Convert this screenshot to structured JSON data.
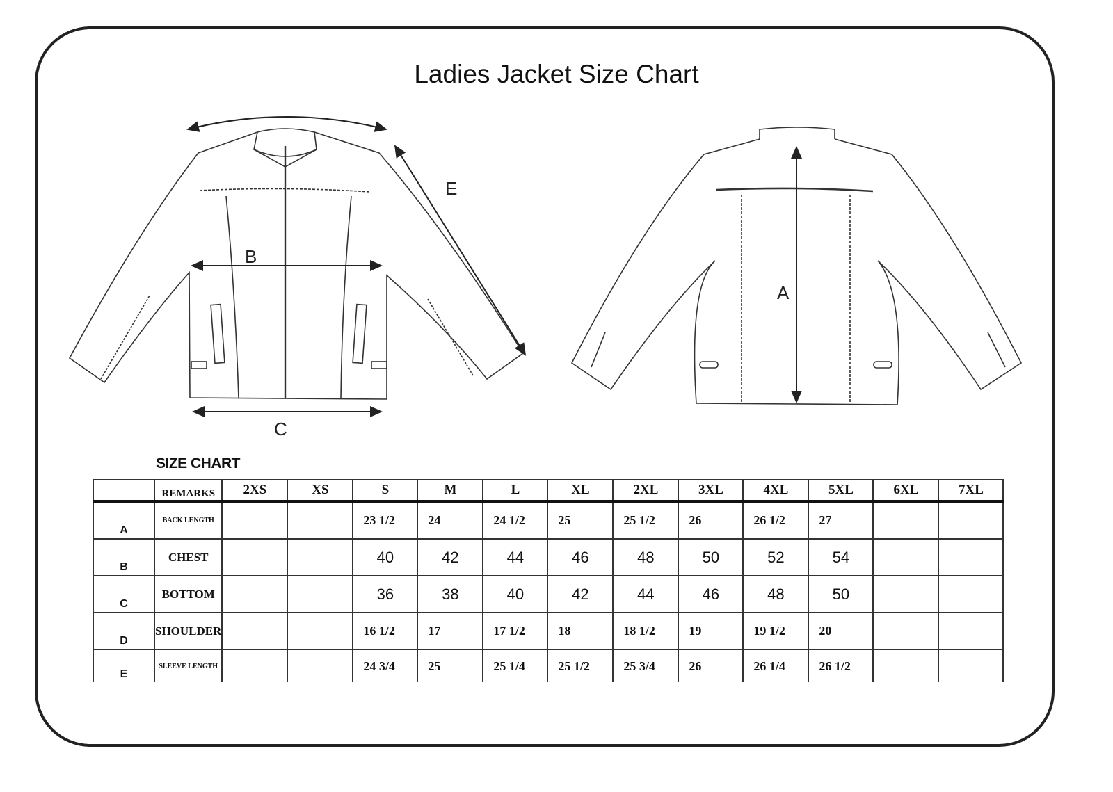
{
  "title": "Ladies Jacket Size Chart",
  "diagram_labels": {
    "a": "A",
    "b": "B",
    "c": "C",
    "e": "E"
  },
  "size_chart": {
    "heading": "SIZE CHART",
    "remarks_header": "REMARKS",
    "sizes": [
      "2XS",
      "XS",
      "S",
      "M",
      "L",
      "XL",
      "2XL",
      "3XL",
      "4XL",
      "5XL",
      "6XL",
      "7XL"
    ],
    "rows": [
      {
        "letter": "A",
        "remark": "BACK LENGTH",
        "values": [
          "",
          "",
          "23 1/2",
          "24",
          "24 1/2",
          "25",
          "25 1/2",
          "26",
          "26 1/2",
          "27",
          "",
          ""
        ]
      },
      {
        "letter": "B",
        "remark": "CHEST",
        "values": [
          "",
          "",
          "40",
          "42",
          "44",
          "46",
          "48",
          "50",
          "52",
          "54",
          "",
          ""
        ]
      },
      {
        "letter": "C",
        "remark": "BOTTOM",
        "values": [
          "",
          "",
          "36",
          "38",
          "40",
          "42",
          "44",
          "46",
          "48",
          "50",
          "",
          ""
        ]
      },
      {
        "letter": "D",
        "remark": "SHOULDER",
        "values": [
          "",
          "",
          "16 1/2",
          "17",
          "17 1/2",
          "18",
          "18 1/2",
          "19",
          "19 1/2",
          "20",
          "",
          ""
        ]
      },
      {
        "letter": "E",
        "remark": "SLEEVE LENGTH",
        "values": [
          "",
          "",
          "24 3/4",
          "25",
          "25 1/4",
          "25 1/2",
          "25 3/4",
          "26",
          "26 1/4",
          "26 1/2",
          "",
          ""
        ]
      }
    ]
  }
}
